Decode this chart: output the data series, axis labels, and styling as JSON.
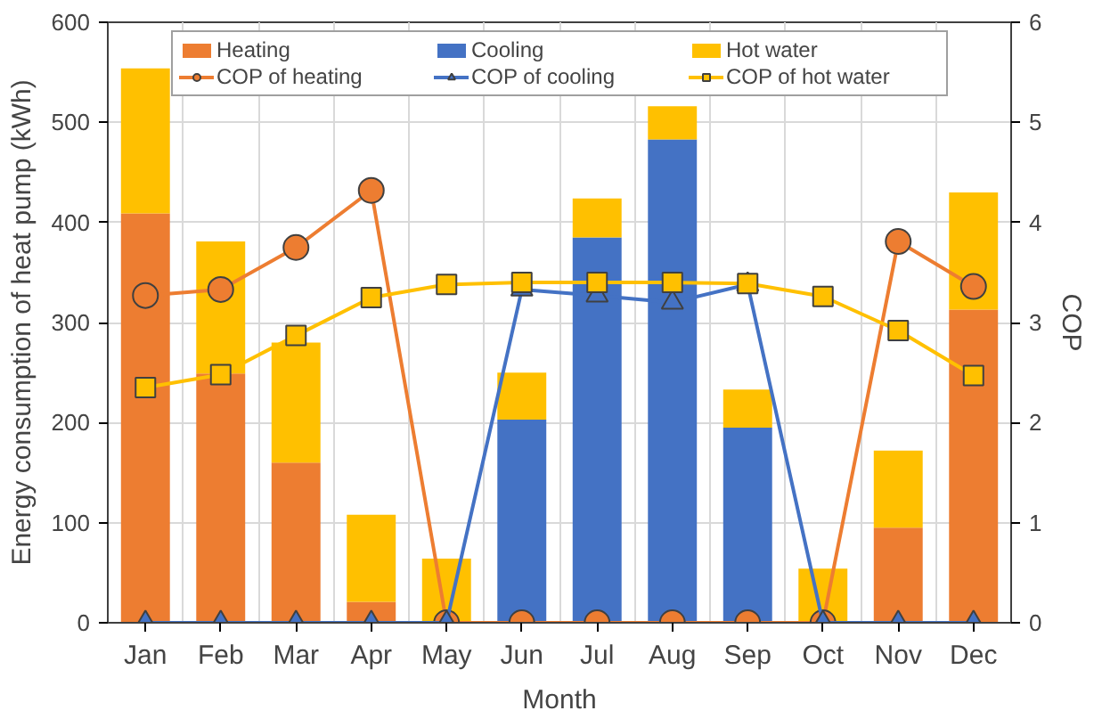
{
  "chart_data": {
    "type": "bar",
    "xlabel": "Month",
    "ylabel": "Energy consumption of heat pump (kWh)",
    "y2label": "COP",
    "categories": [
      "Jan",
      "Feb",
      "Mar",
      "Apr",
      "May",
      "Jun",
      "Jul",
      "Aug",
      "Sep",
      "Oct",
      "Nov",
      "Dec"
    ],
    "stacked": true,
    "ylim": [
      0,
      600
    ],
    "yticks": [
      0,
      100,
      200,
      300,
      400,
      500,
      600
    ],
    "y2lim": [
      0,
      6
    ],
    "y2ticks": [
      0,
      1,
      2,
      3,
      4,
      5,
      6
    ],
    "grid": true,
    "legend": "top",
    "series": [
      {
        "name": "Heating",
        "color": "#ed7d31",
        "values": [
          409,
          249,
          160,
          21,
          0,
          0,
          0,
          0,
          0,
          0,
          95,
          313
        ]
      },
      {
        "name": "Cooling",
        "color": "#4472c4",
        "values": [
          0,
          0,
          0,
          0,
          0,
          203,
          385,
          483,
          195,
          0,
          0,
          0
        ]
      },
      {
        "name": "Hot water",
        "color": "#ffc000",
        "values": [
          145,
          132,
          120,
          87,
          64,
          47,
          39,
          33,
          38,
          54,
          77,
          117
        ]
      },
      {
        "name": "COP of heating",
        "type": "line",
        "axis": "y2",
        "marker": "circle",
        "color": "#ed7d31",
        "values": [
          3.27,
          3.33,
          3.75,
          4.32,
          0,
          0,
          0,
          0,
          0,
          0,
          3.81,
          3.36
        ]
      },
      {
        "name": "COP of cooling",
        "type": "line",
        "axis": "y2",
        "marker": "triangle",
        "color": "#4472c4",
        "values": [
          0,
          0,
          0,
          0,
          0,
          3.33,
          3.27,
          3.2,
          3.38,
          0,
          0,
          0
        ]
      },
      {
        "name": "COP of hot water",
        "type": "line",
        "axis": "y2",
        "marker": "square",
        "color": "#ffc000",
        "values": [
          2.35,
          2.48,
          2.87,
          3.25,
          3.38,
          3.4,
          3.4,
          3.4,
          3.39,
          3.26,
          2.92,
          2.47
        ]
      }
    ]
  }
}
